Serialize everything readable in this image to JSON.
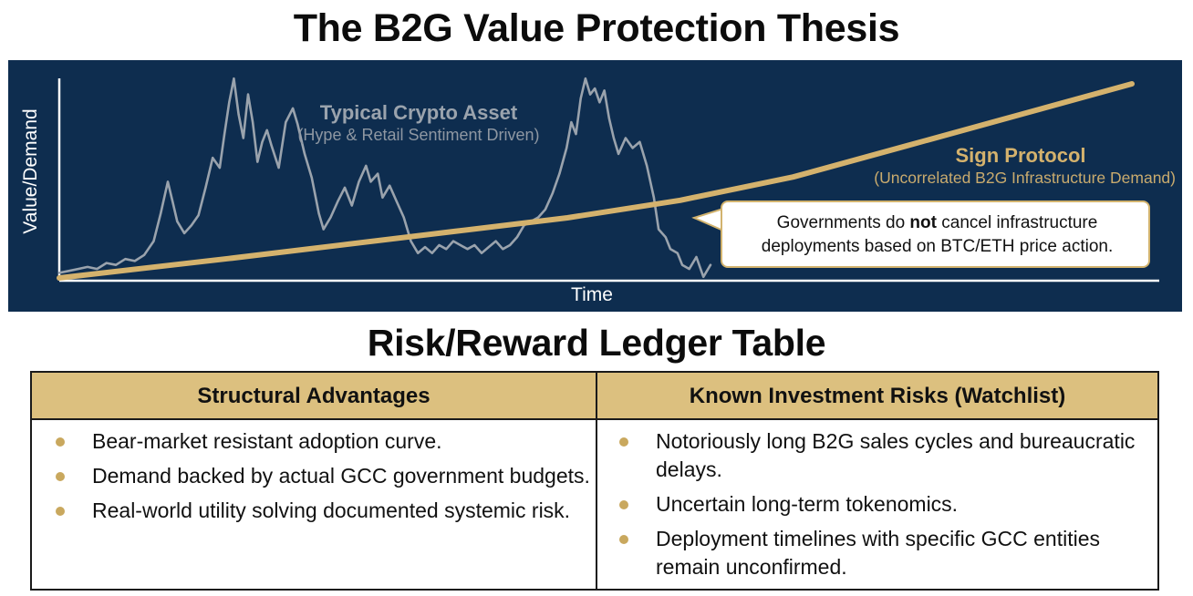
{
  "title": "The B2G Value Protection Thesis",
  "chart_data": {
    "type": "line",
    "xlabel": "Time",
    "ylabel": "Value/Demand",
    "ylim": [
      0,
      100
    ],
    "x": [
      0,
      1,
      2,
      3,
      4,
      5,
      6,
      7,
      8,
      9,
      10,
      11,
      12,
      13,
      14,
      15,
      16,
      17,
      18,
      19,
      20,
      21,
      22,
      23,
      24,
      25,
      26,
      27,
      28,
      29,
      30,
      31,
      32,
      33,
      34,
      35,
      36,
      37,
      38,
      39,
      40,
      41,
      42,
      43,
      44,
      45,
      46,
      47,
      48,
      49,
      50,
      51,
      52,
      53,
      54,
      55,
      56,
      57,
      58,
      59,
      60,
      61,
      62,
      63,
      64,
      65,
      66,
      67,
      68,
      69,
      70,
      71,
      72,
      73,
      74,
      75,
      76,
      77,
      78,
      79,
      80,
      81,
      82,
      83,
      84,
      85,
      86,
      87,
      88,
      89,
      90,
      91,
      92,
      93,
      94,
      95,
      96,
      97,
      98,
      99,
      100,
      101,
      102,
      103,
      104,
      105,
      106,
      107,
      108,
      109,
      110,
      111,
      112,
      113,
      114,
      115,
      116,
      117,
      118,
      119,
      120,
      121,
      122,
      123,
      124,
      125,
      126,
      127,
      128,
      129,
      130,
      131,
      132,
      133,
      134,
      135,
      136,
      137,
      138,
      139,
      140,
      141,
      142,
      143,
      144,
      145,
      146,
      147,
      148,
      149,
      150,
      151,
      152,
      153,
      154,
      155,
      156,
      157,
      158,
      159,
      160,
      161,
      162,
      163,
      164,
      165,
      166,
      167,
      168,
      169,
      170,
      171,
      172,
      173,
      174,
      175,
      176,
      177,
      178,
      179,
      180,
      181,
      182,
      183,
      184,
      185,
      186,
      187,
      188,
      189,
      190,
      191,
      192,
      193,
      194,
      195,
      196,
      197,
      198,
      199,
      200,
      201,
      202,
      203,
      204,
      205,
      206,
      207,
      208,
      209,
      210,
      211,
      212,
      213,
      214,
      215,
      216,
      217,
      218,
      219,
      220,
      221,
      222,
      223,
      224,
      225,
      226,
      227,
      228,
      229,
      230,
      231,
      232,
      233,
      234,
      235,
      236,
      237,
      238,
      239,
      240,
      241,
      242,
      243,
      244,
      245,
      246,
      247,
      248,
      249,
      250,
      251,
      252,
      253,
      254,
      255,
      256,
      257,
      258,
      259,
      260,
      261,
      262,
      263,
      264,
      265,
      266,
      267,
      268,
      269,
      270,
      271,
      272,
      273,
      274,
      275,
      276,
      277,
      278,
      279,
      280,
      281,
      282,
      283,
      284,
      285,
      286,
      287,
      288,
      289,
      290,
      291,
      292,
      293,
      294,
      295,
      296,
      297,
      298,
      299,
      300
    ],
    "series": [
      {
        "name": "Typical Crypto Asset",
        "subtitle": "(Hype & Retail Sentiment Driven)",
        "color": "#9aa3ad",
        "points": [
          [
            0,
            2
          ],
          [
            4,
            3
          ],
          [
            8,
            4
          ],
          [
            12,
            5
          ],
          [
            16,
            4
          ],
          [
            20,
            7
          ],
          [
            24,
            6
          ],
          [
            28,
            9
          ],
          [
            32,
            8
          ],
          [
            36,
            11
          ],
          [
            40,
            18
          ],
          [
            43,
            32
          ],
          [
            46,
            48
          ],
          [
            48,
            38
          ],
          [
            50,
            28
          ],
          [
            53,
            22
          ],
          [
            56,
            26
          ],
          [
            59,
            31
          ],
          [
            62,
            45
          ],
          [
            65,
            60
          ],
          [
            68,
            55
          ],
          [
            70,
            72
          ],
          [
            72,
            88
          ],
          [
            74,
            100
          ],
          [
            76,
            82
          ],
          [
            78,
            70
          ],
          [
            80,
            92
          ],
          [
            82,
            78
          ],
          [
            84,
            58
          ],
          [
            86,
            68
          ],
          [
            88,
            74
          ],
          [
            90,
            66
          ],
          [
            93,
            55
          ],
          [
            96,
            78
          ],
          [
            99,
            85
          ],
          [
            101,
            77
          ],
          [
            104,
            62
          ],
          [
            107,
            50
          ],
          [
            110,
            32
          ],
          [
            112,
            24
          ],
          [
            115,
            30
          ],
          [
            118,
            38
          ],
          [
            121,
            45
          ],
          [
            124,
            36
          ],
          [
            127,
            48
          ],
          [
            130,
            56
          ],
          [
            132,
            48
          ],
          [
            135,
            52
          ],
          [
            137,
            40
          ],
          [
            140,
            46
          ],
          [
            143,
            38
          ],
          [
            146,
            30
          ],
          [
            149,
            18
          ],
          [
            152,
            12
          ],
          [
            155,
            15
          ],
          [
            158,
            12
          ],
          [
            161,
            16
          ],
          [
            164,
            14
          ],
          [
            167,
            18
          ],
          [
            170,
            16
          ],
          [
            173,
            14
          ],
          [
            176,
            16
          ],
          [
            179,
            12
          ],
          [
            182,
            15
          ],
          [
            185,
            18
          ],
          [
            188,
            14
          ],
          [
            191,
            16
          ],
          [
            194,
            20
          ],
          [
            197,
            26
          ],
          [
            200,
            28
          ],
          [
            203,
            30
          ],
          [
            206,
            34
          ],
          [
            209,
            42
          ],
          [
            212,
            52
          ],
          [
            215,
            65
          ],
          [
            217,
            78
          ],
          [
            219,
            72
          ],
          [
            221,
            90
          ],
          [
            223,
            100
          ],
          [
            225,
            92
          ],
          [
            227,
            95
          ],
          [
            229,
            88
          ],
          [
            231,
            94
          ],
          [
            233,
            80
          ],
          [
            235,
            70
          ],
          [
            237,
            62
          ],
          [
            240,
            70
          ],
          [
            243,
            65
          ],
          [
            246,
            68
          ],
          [
            249,
            56
          ],
          [
            252,
            40
          ],
          [
            254,
            24
          ],
          [
            257,
            20
          ],
          [
            259,
            14
          ],
          [
            262,
            12
          ],
          [
            264,
            6
          ],
          [
            267,
            4
          ],
          [
            270,
            10
          ],
          [
            273,
            0
          ],
          [
            276,
            6
          ]
        ]
      },
      {
        "name": "Sign Protocol",
        "subtitle": "(Uncorrelated B2G Infrastructure Demand)",
        "color": "#d4b26d",
        "points": [
          [
            0,
            0
          ],
          [
            30,
            5
          ],
          [
            60,
            10
          ],
          [
            100,
            17
          ],
          [
            140,
            24
          ],
          [
            180,
            31
          ],
          [
            220,
            40
          ],
          [
            260,
            52
          ],
          [
            300,
            68
          ],
          [
            340,
            84
          ],
          [
            380,
            100
          ]
        ]
      }
    ],
    "annotations": [
      {
        "text_before": "Governments do ",
        "bold": "not",
        "text_after": " cancel infrastructure deployments based on BTC/ETH price action."
      }
    ],
    "grid": false
  },
  "ledger": {
    "title": "Risk/Reward Ledger Table",
    "left_header": "Structural Advantages",
    "right_header": "Known Investment Risks (Watchlist)",
    "left_items": [
      "Bear-market resistant adoption curve.",
      "Demand backed by actual GCC government budgets.",
      "Real-world utility solving documented systemic risk."
    ],
    "right_items": [
      "Notoriously long B2G sales cycles and bureaucratic delays.",
      "Uncertain long-term tokenomics.",
      "Deployment timelines with specific GCC entities remain unconfirmed."
    ]
  }
}
